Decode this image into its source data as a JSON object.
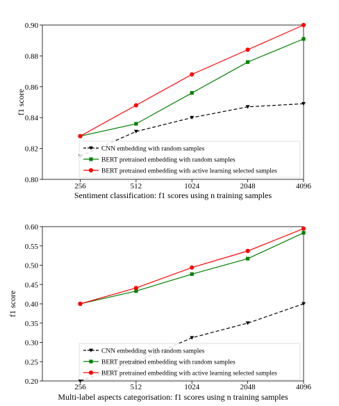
{
  "chart_data": [
    {
      "type": "line",
      "xlabel": "Sentiment classification: f1 scores using n training samples",
      "ylabel": "f1 score",
      "x": [
        256,
        512,
        1024,
        2048,
        4096
      ],
      "xlim": [
        160,
        4096
      ],
      "ylim": [
        0.8,
        0.9
      ],
      "yticks": [
        0.8,
        0.82,
        0.84,
        0.86,
        0.88,
        0.9
      ],
      "ytick_labels": [
        "0.80",
        "0.82",
        "0.84",
        "0.86",
        "0.88",
        "0.90"
      ],
      "xtick_labels": [
        "256",
        "512",
        "1024",
        "2048",
        "4096"
      ],
      "legend_position": "lower-right",
      "series": [
        {
          "name": "CNN embedding with random samples",
          "color": "#000000",
          "style": "dashed",
          "marker": "triangle-down",
          "values": [
            0.815,
            0.831,
            0.84,
            0.847,
            0.849
          ]
        },
        {
          "name": "BERT pretrained embedding with random samples",
          "color": "#008000",
          "style": "solid",
          "marker": "square",
          "values": [
            0.828,
            0.836,
            0.856,
            0.876,
            0.891
          ]
        },
        {
          "name": "BERT pretrained embedding with active learning selected samples",
          "color": "#ff0000",
          "style": "solid",
          "marker": "circle",
          "values": [
            0.828,
            0.848,
            0.868,
            0.884,
            0.9
          ]
        }
      ]
    },
    {
      "type": "line",
      "xlabel": "Multi-label aspects categorisation: f1 scores using n training samples",
      "ylabel": "f1 score",
      "x": [
        256,
        512,
        1024,
        2048,
        4096
      ],
      "xlim": [
        160,
        4096
      ],
      "ylim": [
        0.2,
        0.6
      ],
      "yticks": [
        0.2,
        0.25,
        0.3,
        0.35,
        0.4,
        0.45,
        0.5,
        0.55,
        0.6
      ],
      "ytick_labels": [
        "0.20",
        "0.25",
        "0.30",
        "0.35",
        "0.40",
        "0.45",
        "0.50",
        "0.55",
        "0.60"
      ],
      "xtick_labels": [
        "256",
        "512",
        "1024",
        "2048",
        "4096"
      ],
      "legend_position": "lower-right",
      "series": [
        {
          "name": "CNN embedding with random samples",
          "color": "#000000",
          "style": "dashed",
          "marker": "triangle-down",
          "values": [
            0.2,
            0.25,
            0.312,
            0.35,
            0.4
          ]
        },
        {
          "name": "BERT pretrained embedding with random samples",
          "color": "#008000",
          "style": "solid",
          "marker": "square",
          "values": [
            0.4,
            0.433,
            0.477,
            0.517,
            0.584
          ]
        },
        {
          "name": "BERT pretrained embedding with active learning selected samples",
          "color": "#ff0000",
          "style": "solid",
          "marker": "circle",
          "values": [
            0.4,
            0.441,
            0.494,
            0.537,
            0.595
          ]
        }
      ]
    }
  ]
}
